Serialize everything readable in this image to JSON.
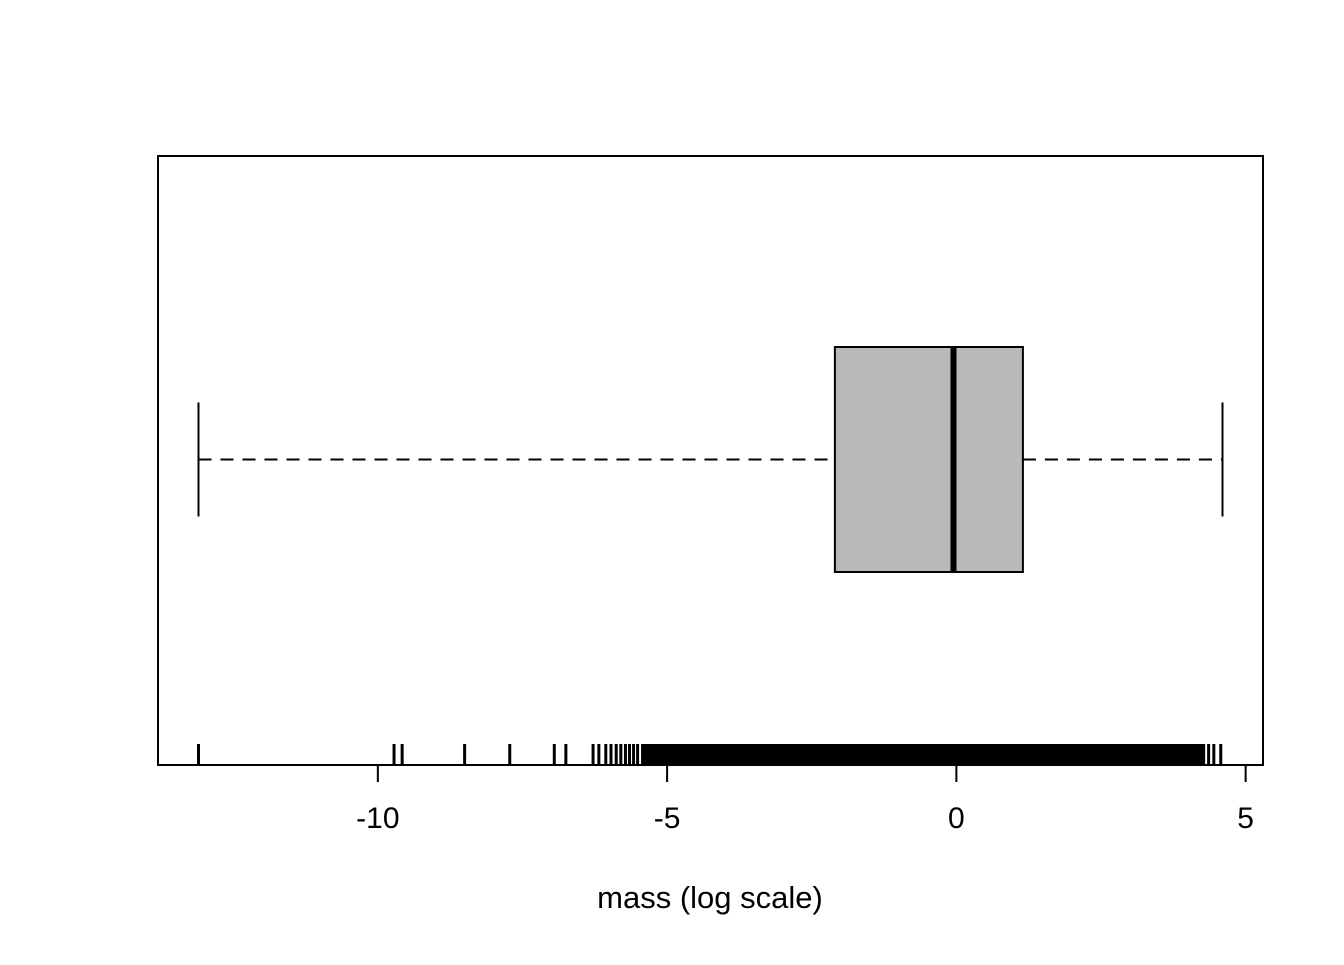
{
  "chart_data": {
    "type": "boxplot",
    "orientation": "horizontal",
    "title": "",
    "xlabel": "mass (log scale)",
    "x_ticks": [
      -10,
      -5,
      0,
      5
    ],
    "x_tick_labels": [
      "-10",
      "-5",
      "0",
      "5"
    ],
    "xlim": [
      -13.8,
      5.3
    ],
    "grid": false,
    "legend": "none",
    "box": {
      "whisker_low": -13.1,
      "q1": -2.1,
      "median": -0.05,
      "q3": 1.15,
      "whisker_high": 4.6
    },
    "style": {
      "box_fill": "#b9b9b9",
      "line_color": "#000000",
      "whisker_line_style": "dashed",
      "median_line_weight": "thick",
      "background": "#ffffff"
    },
    "rug": {
      "sparse_ticks": [
        -13.1,
        -9.72,
        -9.58,
        -8.5,
        -7.72,
        -6.95,
        -6.75,
        -6.28,
        -6.18,
        -6.06,
        -5.97,
        -5.88,
        -5.8,
        -5.72,
        -5.65,
        -5.58,
        -5.51,
        4.36,
        4.45,
        4.57
      ],
      "dense_range": [
        -5.45,
        4.3
      ],
      "description": "dense cluster of observations rendered as rug ticks along the bottom axis"
    }
  }
}
